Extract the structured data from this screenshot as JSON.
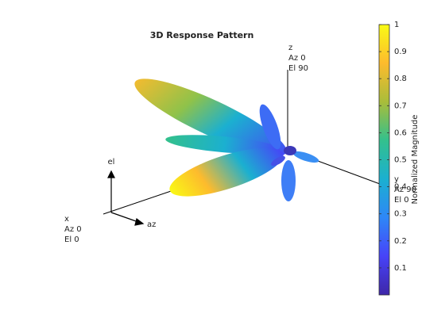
{
  "chart_data": {
    "type": "pattern3d",
    "title": "3D Response Pattern",
    "colorbar_label": "Normalized Magnitude",
    "clim": [
      0,
      1
    ],
    "cticks": [
      0.1,
      0.2,
      0.3,
      0.4,
      0.5,
      0.6,
      0.7,
      0.8,
      0.9,
      1
    ],
    "colormap": [
      "#3e26a8",
      "#4743f8",
      "#2e87f7",
      "#1bb0d0",
      "#33c08d",
      "#a9bd3a",
      "#fdbb2d",
      "#f9fb15"
    ],
    "axis_annotations": {
      "x": [
        "x",
        "Az 0",
        "El 0"
      ],
      "y": [
        "y",
        "Az 90",
        "El 0"
      ],
      "z": [
        "z",
        "Az 0",
        "El 90"
      ]
    },
    "triad_labels": {
      "el": "el",
      "az": "az"
    }
  }
}
